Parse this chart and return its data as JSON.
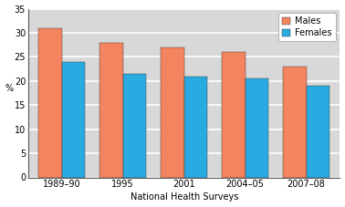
{
  "categories": [
    "1989–90",
    "1995",
    "2001",
    "2004–05",
    "2007–08"
  ],
  "males": [
    31.0,
    28.0,
    27.0,
    26.0,
    23.0
  ],
  "females": [
    24.0,
    21.5,
    21.0,
    20.5,
    19.0
  ],
  "male_color": "#F4845F",
  "female_color": "#29ABE2",
  "ylabel": "%",
  "xlabel": "National Health Surveys",
  "ylim": [
    0,
    35
  ],
  "yticks": [
    0,
    5,
    10,
    15,
    20,
    25,
    30,
    35
  ],
  "legend_labels": [
    "Males",
    "Females"
  ],
  "bar_width": 0.38,
  "background_color": "#FFFFFF",
  "plot_bg_color": "#D8D8D8",
  "grid_color": "#FFFFFF",
  "axis_fontsize": 7,
  "tick_fontsize": 7
}
